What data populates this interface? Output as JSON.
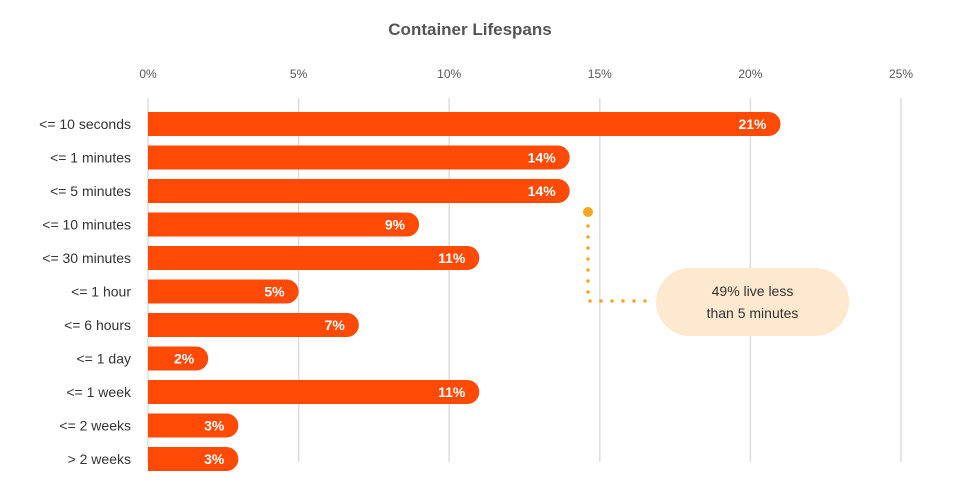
{
  "chart_data": {
    "type": "bar",
    "orientation": "horizontal",
    "title": "Container Lifespans",
    "categories": [
      "<= 10 seconds",
      "<= 1 minutes",
      "<= 5 minutes",
      "<= 10 minutes",
      "<= 30 minutes",
      "<= 1 hour",
      "<= 6 hours",
      "<= 1 day",
      "<= 1 week",
      "<= 2 weeks",
      "> 2 weeks"
    ],
    "values": [
      21,
      14,
      14,
      9,
      11,
      5,
      7,
      2,
      11,
      3,
      3
    ],
    "value_labels": [
      "21%",
      "14%",
      "14%",
      "9%",
      "11%",
      "5%",
      "7%",
      "2%",
      "11%",
      "3%",
      "3%"
    ],
    "xlim": [
      0,
      25
    ],
    "x_ticks": [
      0,
      5,
      10,
      15,
      20,
      25
    ],
    "x_tick_labels": [
      "0%",
      "5%",
      "10%",
      "15%",
      "20%",
      "25%"
    ],
    "grid": true,
    "bar_color": "#ff4a06",
    "grid_color": "#dddddd",
    "annotation": {
      "line1": "49% live less",
      "line2": "than 5 minutes",
      "background": "#fde9cf",
      "connector_color": "#f5a623"
    }
  }
}
